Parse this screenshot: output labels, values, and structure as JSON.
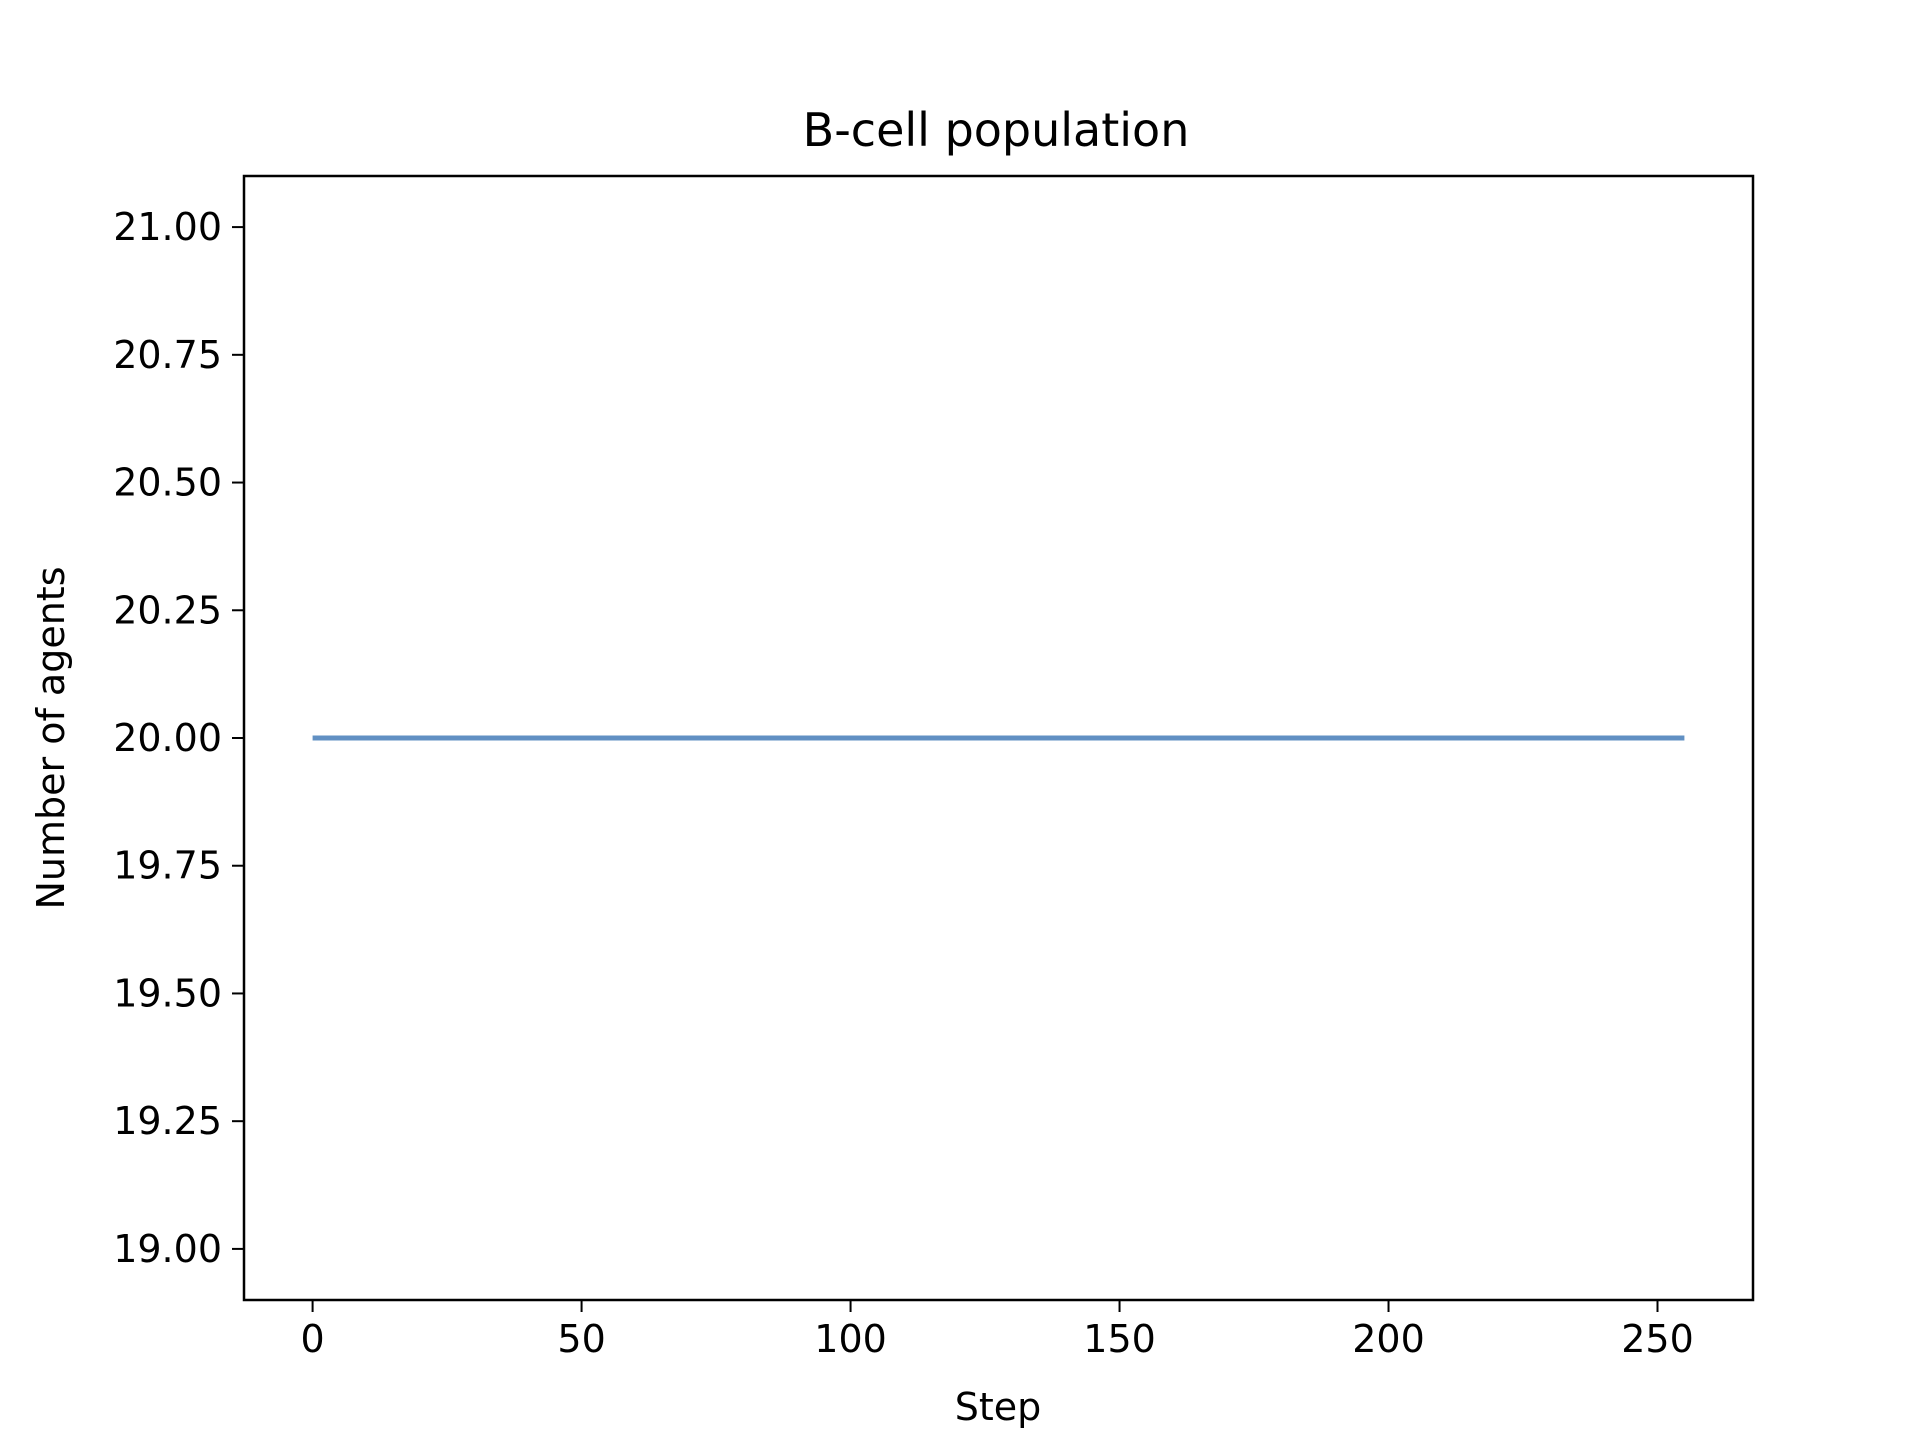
{
  "chart_data": {
    "type": "line",
    "title": "B-cell population",
    "xlabel": "Step",
    "ylabel": "Number of agents",
    "xlim": [
      -12.75,
      267.75
    ],
    "ylim": [
      18.9,
      21.1
    ],
    "xticks": [
      0,
      50,
      100,
      150,
      200,
      250
    ],
    "xtick_labels": [
      "0",
      "50",
      "100",
      "150",
      "200",
      "250"
    ],
    "yticks": [
      19.0,
      19.25,
      19.5,
      19.75,
      20.0,
      20.25,
      20.5,
      20.75,
      21.0
    ],
    "ytick_labels": [
      "19.00",
      "19.25",
      "19.50",
      "19.75",
      "20.00",
      "20.25",
      "20.50",
      "20.75",
      "21.00"
    ],
    "grid": false,
    "series": [
      {
        "color": "#6190c3",
        "x": [
          0,
          255
        ],
        "y": [
          20.0,
          20.0
        ]
      }
    ]
  }
}
